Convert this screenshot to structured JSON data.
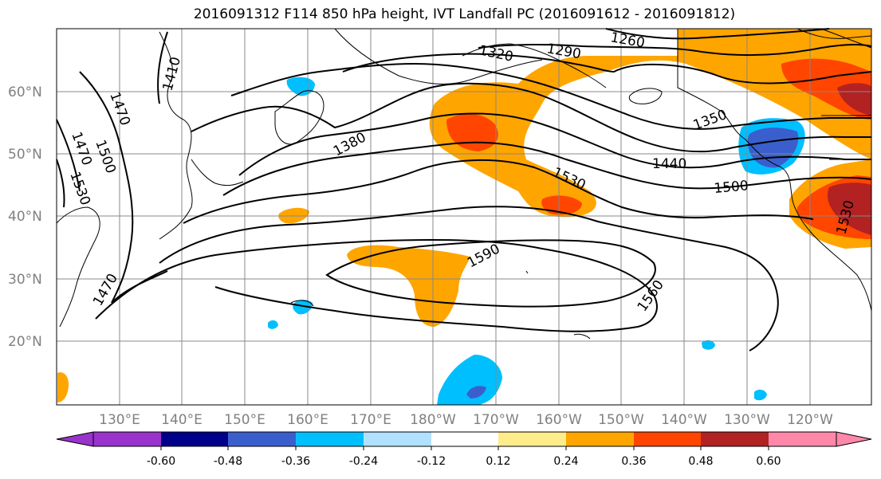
{
  "title": "2016091312 F114 850 hPa height, IVT Landfall PC (2016091612 - 2016091812)",
  "lat_labels": [
    "60°N",
    "50°N",
    "40°N",
    "30°N",
    "20°N"
  ],
  "lon_labels": [
    "130°E",
    "140°E",
    "150°E",
    "160°E",
    "170°E",
    "180°W",
    "170°W",
    "160°W",
    "150°W",
    "140°W",
    "130°W",
    "120°W"
  ],
  "contour_labels": [
    "1260",
    "1290",
    "1320",
    "1350",
    "1380",
    "1410",
    "1440",
    "1470",
    "1470",
    "1470",
    "1500",
    "1500",
    "1530",
    "1530",
    "1530",
    "1560",
    "1590"
  ],
  "colorbar": {
    "tick_labels": [
      "-0.60",
      "-0.48",
      "-0.36",
      "-0.24",
      "-0.12",
      "0.12",
      "0.24",
      "0.36",
      "0.48",
      "0.60"
    ],
    "colors": [
      "#9933cc",
      "#00008b",
      "#3a5fcd",
      "#00bfff",
      "#b0e2ff",
      "#ffffff",
      "#ffec8b",
      "#ffa500",
      "#ff4500",
      "#b22222",
      "#ff88aa"
    ]
  },
  "colors": {
    "land_line": "#000000",
    "contour": "#000000",
    "grid": "#888888"
  }
}
